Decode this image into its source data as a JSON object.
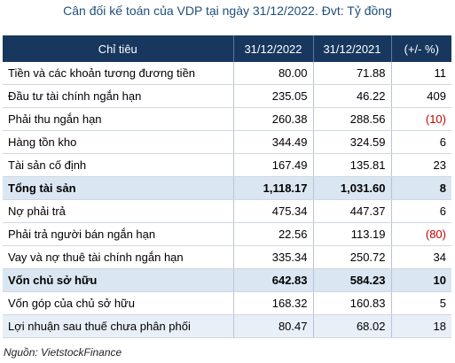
{
  "title": "Cân đối kế toán của VDP tại ngày 31/12/2022. Đvt: Tỷ đồng",
  "table": {
    "headers": [
      "Chỉ tiêu",
      "31/12/2022",
      "31/12/2021",
      "(+/- %)"
    ],
    "rows": [
      {
        "label": "Tiền và các khoản tương đương tiền",
        "v2022": "80.00",
        "v2021": "71.88",
        "change": "11"
      },
      {
        "label": "Đầu tư tài chính ngắn hạn",
        "v2022": "235.05",
        "v2021": "46.22",
        "change": "409"
      },
      {
        "label": "Phải thu ngắn hạn",
        "v2022": "260.38",
        "v2021": "288.56",
        "change": "(10)"
      },
      {
        "label": "Hàng tồn kho",
        "v2022": "344.49",
        "v2021": "324.59",
        "change": "6"
      },
      {
        "label": "Tài sản cố định",
        "v2022": "167.49",
        "v2021": "135.81",
        "change": "23"
      },
      {
        "label": "Tổng tài sản",
        "v2022": "1,118.17",
        "v2021": "1,031.60",
        "change": "8"
      },
      {
        "label": "Nợ phải trả",
        "v2022": "475.34",
        "v2021": "447.37",
        "change": "6"
      },
      {
        "label": "Phải trả người bán ngắn hạn",
        "v2022": "22.56",
        "v2021": "113.19",
        "change": "(80)"
      },
      {
        "label": "Vay và nợ thuê tài chính ngắn hạn",
        "v2022": "335.34",
        "v2021": "250.72",
        "change": "34"
      },
      {
        "label": "Vốn chủ sở hữu",
        "v2022": "642.83",
        "v2021": "584.23",
        "change": "10"
      },
      {
        "label": "Vốn góp của chủ sở hữu",
        "v2022": "168.32",
        "v2021": "160.83",
        "change": "5"
      },
      {
        "label": "Lợi nhuận sau thuế chưa phân phối",
        "v2022": "80.47",
        "v2021": "68.02",
        "change": "18"
      }
    ]
  },
  "source": "Nguồn: VietstockFinance",
  "colors": {
    "header_bg": "#17375e",
    "total_bg": "#dae6f2",
    "alt_bg": "#e9eff7",
    "negative": "#c00000",
    "title": "#1f4e79"
  }
}
